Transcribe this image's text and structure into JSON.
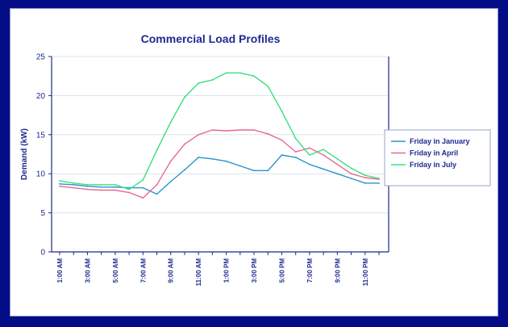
{
  "colors": {
    "frame": "#040c86",
    "axis": "#1a2a8c",
    "grid": "#d8e3ee",
    "text": "#1d2a92"
  },
  "chart_data": {
    "type": "line",
    "title": "Commercial Load Profiles",
    "xlabel": "",
    "ylabel": "Demand (kW)",
    "ylim": [
      0,
      25
    ],
    "yticks": [
      0,
      5,
      10,
      15,
      20,
      25
    ],
    "grid": "horizontal",
    "legend_position": "right",
    "x": [
      1,
      2,
      3,
      4,
      5,
      6,
      7,
      8,
      9,
      10,
      11,
      12,
      13,
      14,
      15,
      16,
      17,
      18,
      19,
      20,
      21,
      22,
      23,
      24
    ],
    "xtick_labels": [
      "1:00 AM",
      "3:00 AM",
      "5:00 AM",
      "7:00 AM",
      "9:00 AM",
      "11:00 AM",
      "1:00 PM",
      "3:00 PM",
      "5:00 PM",
      "7:00 PM",
      "9:00 PM",
      "11:00 PM"
    ],
    "xtick_positions": [
      1,
      3,
      5,
      7,
      9,
      11,
      13,
      15,
      17,
      19,
      21,
      23
    ],
    "series": [
      {
        "name": "Friday in January",
        "color": "#2a95c6",
        "values": [
          8.7,
          8.6,
          8.4,
          8.3,
          8.3,
          8.2,
          8.2,
          7.4,
          9.0,
          10.5,
          12.1,
          11.9,
          11.6,
          11.0,
          10.4,
          10.4,
          12.4,
          12.1,
          11.2,
          10.6,
          10.0,
          9.4,
          8.8,
          8.8
        ]
      },
      {
        "name": "Friday in April",
        "color": "#e66896",
        "values": [
          8.4,
          8.2,
          8.0,
          7.9,
          7.9,
          7.6,
          6.9,
          8.6,
          11.6,
          13.8,
          15.0,
          15.6,
          15.5,
          15.6,
          15.6,
          15.1,
          14.3,
          12.8,
          13.3,
          12.4,
          11.2,
          10.0,
          9.5,
          9.3
        ]
      },
      {
        "name": "Friday in July",
        "color": "#38e07f",
        "values": [
          9.1,
          8.8,
          8.6,
          8.6,
          8.6,
          8.0,
          9.2,
          13.0,
          16.6,
          19.8,
          21.6,
          22.0,
          22.9,
          22.9,
          22.5,
          21.2,
          18.0,
          14.5,
          12.4,
          13.1,
          11.9,
          10.7,
          9.8,
          9.4
        ]
      }
    ]
  }
}
